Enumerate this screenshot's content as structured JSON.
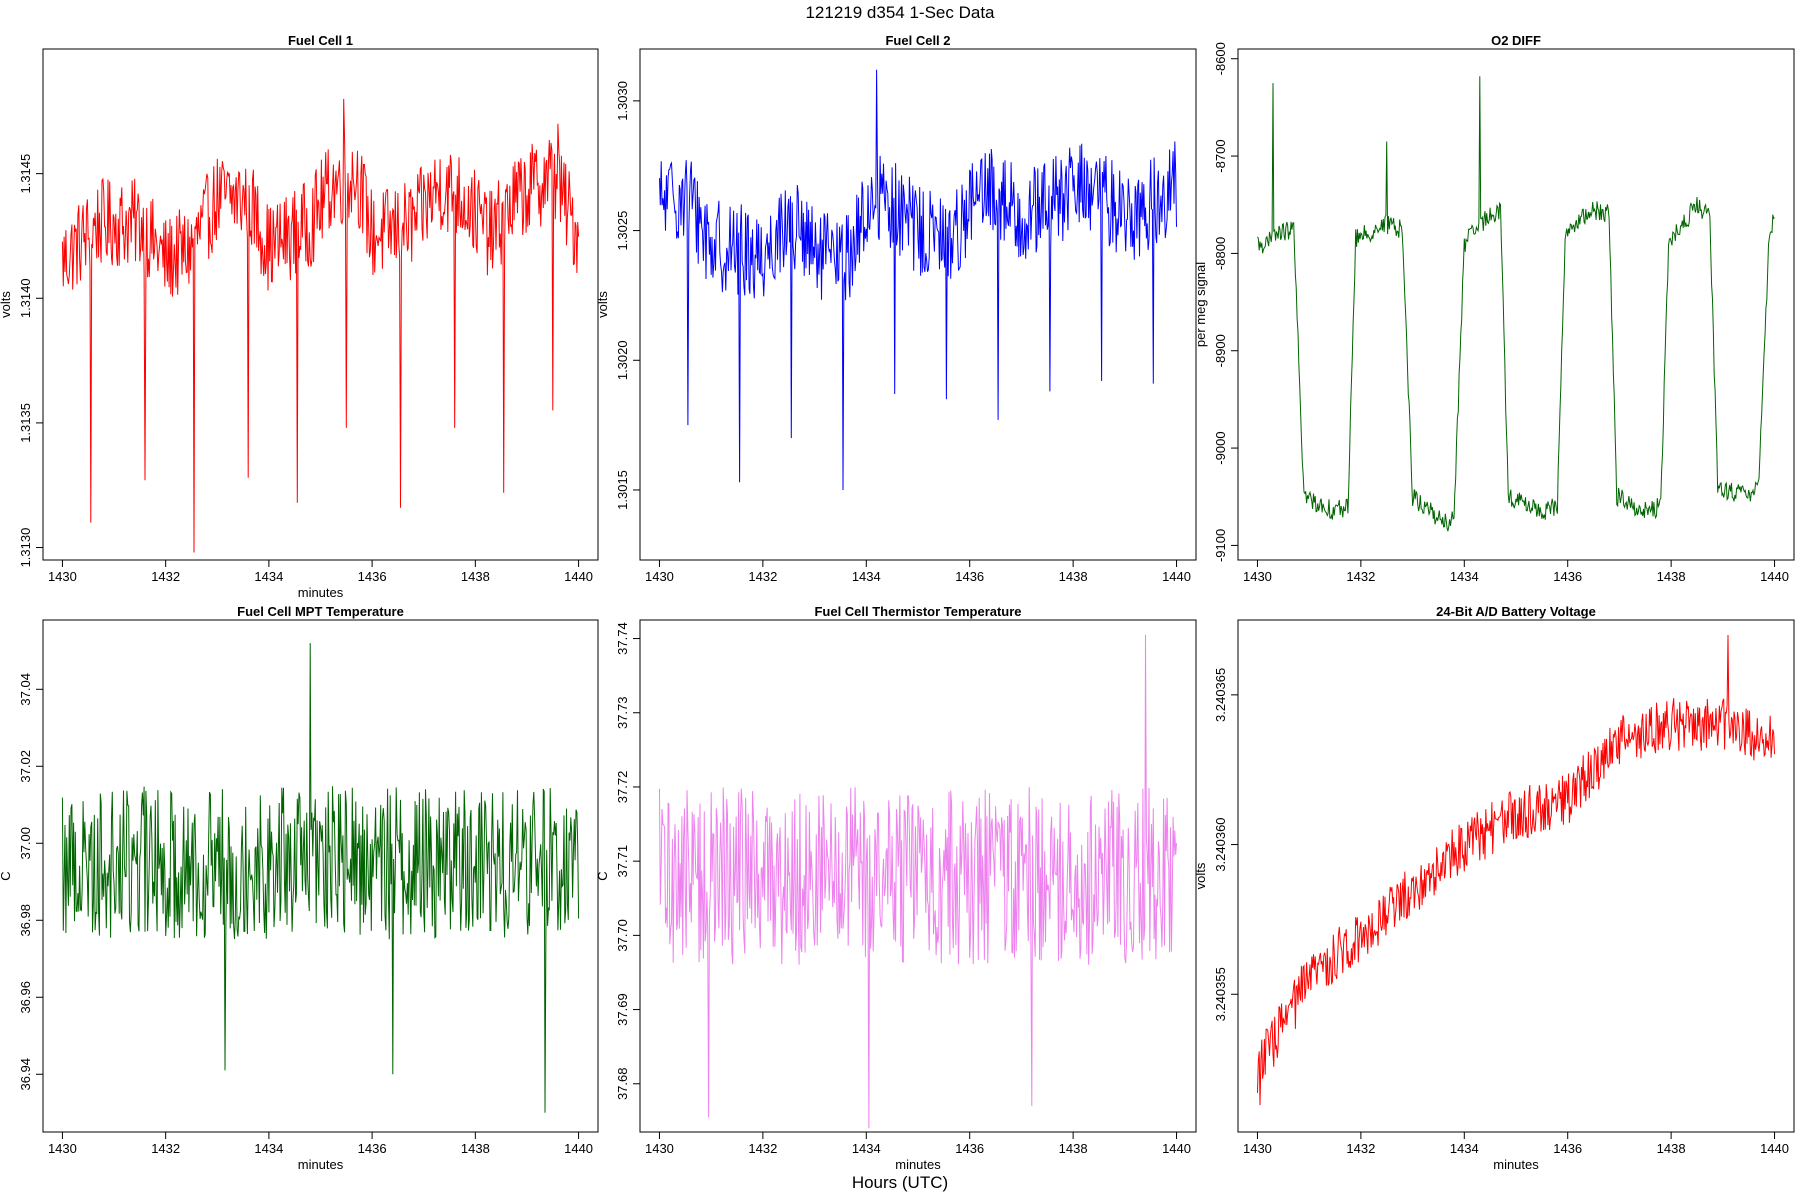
{
  "figure": {
    "title": "121219   d354   1-Sec Data",
    "xlabel": "Hours (UTC)"
  },
  "chart_data": [
    {
      "type": "line",
      "title": "Fuel Cell 1",
      "xlabel": "minutes",
      "ylabel": "volts",
      "color": "#ff0000",
      "xlim": [
        1430,
        1440
      ],
      "ylim": [
        1.31295,
        1.315
      ],
      "xticks": [
        1430,
        1432,
        1434,
        1436,
        1438,
        1440
      ],
      "yticks": [
        1.313,
        1.3135,
        1.314,
        1.3145
      ],
      "ytick_labels": [
        "1.3130",
        "1.3135",
        "1.3140",
        "1.3145"
      ],
      "series_profile": {
        "base_points": [
          [
            1430,
            1.31415
          ],
          [
            1430.7,
            1.3143
          ],
          [
            1431.5,
            1.3143
          ],
          [
            1432.0,
            1.31415
          ],
          [
            1432.5,
            1.3142
          ],
          [
            1433.0,
            1.3144
          ],
          [
            1433.6,
            1.3144
          ],
          [
            1434.0,
            1.3142
          ],
          [
            1434.8,
            1.3143
          ],
          [
            1435.2,
            1.31445
          ],
          [
            1435.7,
            1.3145
          ],
          [
            1436.0,
            1.31425
          ],
          [
            1436.8,
            1.3143
          ],
          [
            1437.3,
            1.31445
          ],
          [
            1437.8,
            1.3144
          ],
          [
            1438.3,
            1.31425
          ],
          [
            1438.8,
            1.3144
          ],
          [
            1439.5,
            1.3145
          ],
          [
            1440,
            1.31425
          ]
        ],
        "noise": 0.00018,
        "spikes": [
          [
            1430.55,
            1.3131
          ],
          [
            1431.6,
            1.31327
          ],
          [
            1432.55,
            1.31298
          ],
          [
            1433.6,
            1.31328
          ],
          [
            1434.55,
            1.31318
          ],
          [
            1435.5,
            1.31348
          ],
          [
            1435.45,
            1.3148
          ],
          [
            1436.55,
            1.31316
          ],
          [
            1437.6,
            1.31348
          ],
          [
            1438.55,
            1.31322
          ],
          [
            1439.5,
            1.31355
          ],
          [
            1439.6,
            1.3147
          ]
        ]
      }
    },
    {
      "type": "line",
      "title": "Fuel Cell 2",
      "xlabel": "",
      "ylabel": "volts",
      "color": "#0000ff",
      "xlim": [
        1430,
        1440
      ],
      "ylim": [
        1.30123,
        1.3032
      ],
      "xticks": [
        1430,
        1432,
        1434,
        1436,
        1438,
        1440
      ],
      "yticks": [
        1.3015,
        1.302,
        1.3025,
        1.303
      ],
      "ytick_labels": [
        "1.3015",
        "1.3020",
        "1.3025",
        "1.3030"
      ],
      "series_profile": {
        "base_points": [
          [
            1430,
            1.3026
          ],
          [
            1430.5,
            1.30265
          ],
          [
            1431.0,
            1.30245
          ],
          [
            1432.0,
            1.3024
          ],
          [
            1432.5,
            1.30255
          ],
          [
            1433.0,
            1.3024
          ],
          [
            1433.6,
            1.30238
          ],
          [
            1434.2,
            1.30265
          ],
          [
            1434.6,
            1.30258
          ],
          [
            1435.0,
            1.3025
          ],
          [
            1435.6,
            1.30245
          ],
          [
            1436.0,
            1.3026
          ],
          [
            1436.5,
            1.30265
          ],
          [
            1437.0,
            1.30255
          ],
          [
            1437.6,
            1.3026
          ],
          [
            1438.2,
            1.30268
          ],
          [
            1438.6,
            1.30262
          ],
          [
            1439.2,
            1.30255
          ],
          [
            1440,
            1.30268
          ]
        ],
        "noise": 0.00018,
        "spikes": [
          [
            1430.55,
            1.30175
          ],
          [
            1431.55,
            1.30153
          ],
          [
            1432.55,
            1.3017
          ],
          [
            1433.55,
            1.3015
          ],
          [
            1434.2,
            1.30312
          ],
          [
            1434.55,
            1.30187
          ],
          [
            1435.55,
            1.30185
          ],
          [
            1436.55,
            1.30177
          ],
          [
            1437.55,
            1.30188
          ],
          [
            1438.55,
            1.30192
          ],
          [
            1439.55,
            1.30191
          ]
        ]
      }
    },
    {
      "type": "line",
      "title": "O2 DIFF",
      "xlabel": "",
      "ylabel": "per meg signal",
      "color": "#006400",
      "xlim": [
        1430,
        1440
      ],
      "ylim": [
        -9115,
        -8590
      ],
      "xticks": [
        1430,
        1432,
        1434,
        1436,
        1438,
        1440
      ],
      "yticks": [
        -9100,
        -9000,
        -8900,
        -8800,
        -8700,
        -8600
      ],
      "ytick_labels": [
        "-9100",
        "-9000",
        "-8900",
        "-8800",
        "-8700",
        "-8600"
      ],
      "series_profile": {
        "base_points": [
          [
            1430,
            -8790
          ],
          [
            1430.2,
            -8790
          ],
          [
            1430.35,
            -8780
          ],
          [
            1430.7,
            -8775
          ],
          [
            1430.9,
            -9050
          ],
          [
            1431.5,
            -9065
          ],
          [
            1431.75,
            -9060
          ],
          [
            1431.9,
            -8785
          ],
          [
            1432.5,
            -8770
          ],
          [
            1432.8,
            -8775
          ],
          [
            1433.0,
            -9050
          ],
          [
            1433.7,
            -9080
          ],
          [
            1433.8,
            -9070
          ],
          [
            1434.0,
            -8790
          ],
          [
            1434.5,
            -8760
          ],
          [
            1434.7,
            -8755
          ],
          [
            1434.85,
            -9050
          ],
          [
            1435.5,
            -9065
          ],
          [
            1435.8,
            -9060
          ],
          [
            1435.95,
            -8780
          ],
          [
            1436.5,
            -8755
          ],
          [
            1436.8,
            -8760
          ],
          [
            1436.95,
            -9050
          ],
          [
            1437.5,
            -9065
          ],
          [
            1437.8,
            -9060
          ],
          [
            1437.95,
            -8790
          ],
          [
            1438.5,
            -8750
          ],
          [
            1438.75,
            -8765
          ],
          [
            1438.9,
            -9040
          ],
          [
            1439.5,
            -9050
          ],
          [
            1439.7,
            -9030
          ],
          [
            1439.9,
            -8775
          ],
          [
            1440,
            -8765
          ]
        ],
        "noise": 10,
        "spikes": [
          [
            1430.3,
            -8625
          ],
          [
            1432.5,
            -8685
          ],
          [
            1434.3,
            -8618
          ]
        ]
      }
    },
    {
      "type": "line",
      "title": "Fuel Cell MPT Temperature",
      "xlabel": "minutes",
      "ylabel": "C",
      "color": "#006400",
      "xlim": [
        1430,
        1440
      ],
      "ylim": [
        36.925,
        37.058
      ],
      "xticks": [
        1430,
        1432,
        1434,
        1436,
        1438,
        1440
      ],
      "yticks": [
        36.94,
        36.96,
        36.98,
        37.0,
        37.02,
        37.04
      ],
      "ytick_labels": [
        "36.94",
        "36.96",
        "36.98",
        "37.00",
        "37.02",
        "37.04"
      ],
      "series_profile": {
        "base_points": [
          [
            1430,
            36.995
          ],
          [
            1440,
            36.995
          ]
        ],
        "noise": 0.02,
        "spikes": [
          [
            1434.8,
            37.052
          ],
          [
            1439.35,
            36.93
          ],
          [
            1433.15,
            36.941
          ],
          [
            1436.4,
            36.94
          ]
        ]
      }
    },
    {
      "type": "line",
      "title": "Fuel Cell Thermistor Temperature",
      "xlabel": "minutes",
      "ylabel": "C",
      "color": "#ee82ee",
      "xlim": [
        1430,
        1440
      ],
      "ylim": [
        37.6735,
        37.7425
      ],
      "xticks": [
        1430,
        1432,
        1434,
        1436,
        1438,
        1440
      ],
      "yticks": [
        37.68,
        37.69,
        37.7,
        37.71,
        37.72,
        37.73,
        37.74
      ],
      "ytick_labels": [
        "37.68",
        "37.69",
        "37.70",
        "37.71",
        "37.72",
        "37.73",
        "37.74"
      ],
      "series_profile": {
        "base_points": [
          [
            1430,
            37.708
          ],
          [
            1440,
            37.708
          ]
        ],
        "noise": 0.012,
        "spikes": [
          [
            1430.95,
            37.6755
          ],
          [
            1434.05,
            37.674
          ],
          [
            1439.4,
            37.7405
          ],
          [
            1437.2,
            37.677
          ]
        ]
      }
    },
    {
      "type": "line",
      "title": "24-Bit A/D Battery Voltage",
      "xlabel": "minutes",
      "ylabel": "volts",
      "color": "#ff0000",
      "xlim": [
        1430,
        1440
      ],
      "ylim": [
        3.2403504,
        3.2403675
      ],
      "xticks": [
        1430,
        1432,
        1434,
        1436,
        1438,
        1440
      ],
      "yticks": [
        3.240355,
        3.24036,
        3.240365
      ],
      "ytick_labels": [
        "3.240355",
        "3.240360",
        "3.240365"
      ],
      "series_profile": {
        "base_points": [
          [
            1430,
            3.2403525
          ],
          [
            1431,
            3.2403555
          ],
          [
            1432,
            3.240357
          ],
          [
            1433,
            3.2403585
          ],
          [
            1434,
            3.24036
          ],
          [
            1435,
            3.240361
          ],
          [
            1436,
            3.2403615
          ],
          [
            1437,
            3.2403635
          ],
          [
            1438,
            3.240364
          ],
          [
            1439,
            3.240364
          ],
          [
            1440,
            3.2403635
          ]
        ],
        "noise": 9e-07,
        "spikes": [
          [
            1430.05,
            3.2403513
          ],
          [
            1439.1,
            3.240367
          ]
        ]
      }
    }
  ]
}
